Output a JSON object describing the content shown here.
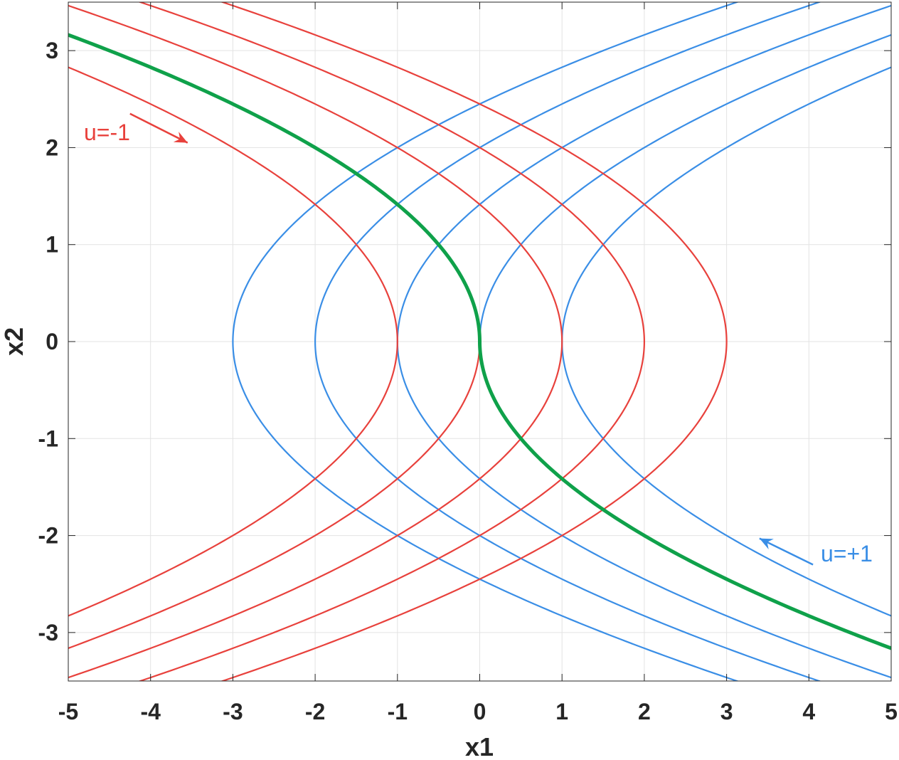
{
  "chart_data": {
    "type": "line",
    "title": "",
    "xlabel": "x1",
    "ylabel": "x2",
    "xlim": [
      -5,
      5
    ],
    "ylim": [
      -3.5,
      3.5
    ],
    "grid": true,
    "xticks": [
      -5,
      -4,
      -3,
      -2,
      -1,
      0,
      1,
      2,
      3,
      4,
      5
    ],
    "yticks": [
      -3,
      -2,
      -1,
      0,
      1,
      2,
      3
    ],
    "colors": {
      "u_minus": "#e8413c",
      "u_plus": "#3a8ee6",
      "switching": "#0fa14a"
    },
    "curve_families": [
      {
        "name": "u=-1",
        "relation": "x1 = c - x2^2/2",
        "c_values": [
          -1,
          0,
          1,
          2,
          3
        ],
        "color": "#e8413c"
      },
      {
        "name": "u=+1",
        "relation": "x1 = c + x2^2/2",
        "c_values": [
          -3,
          -2,
          -1,
          0,
          1
        ],
        "color": "#3a8ee6"
      }
    ],
    "switching_curve": {
      "relation": "x1 = -x2*|x2|/2",
      "color": "#0fa14a"
    },
    "annotations": [
      {
        "text": "u=-1",
        "color": "#e8413c",
        "arrow_from": [
          -4.25,
          2.35
        ],
        "arrow_to": [
          -3.55,
          2.05
        ]
      },
      {
        "text": "u=+1",
        "color": "#3a8ee6",
        "arrow_from": [
          4.05,
          -2.3
        ],
        "arrow_to": [
          3.4,
          -2.03
        ]
      }
    ]
  }
}
